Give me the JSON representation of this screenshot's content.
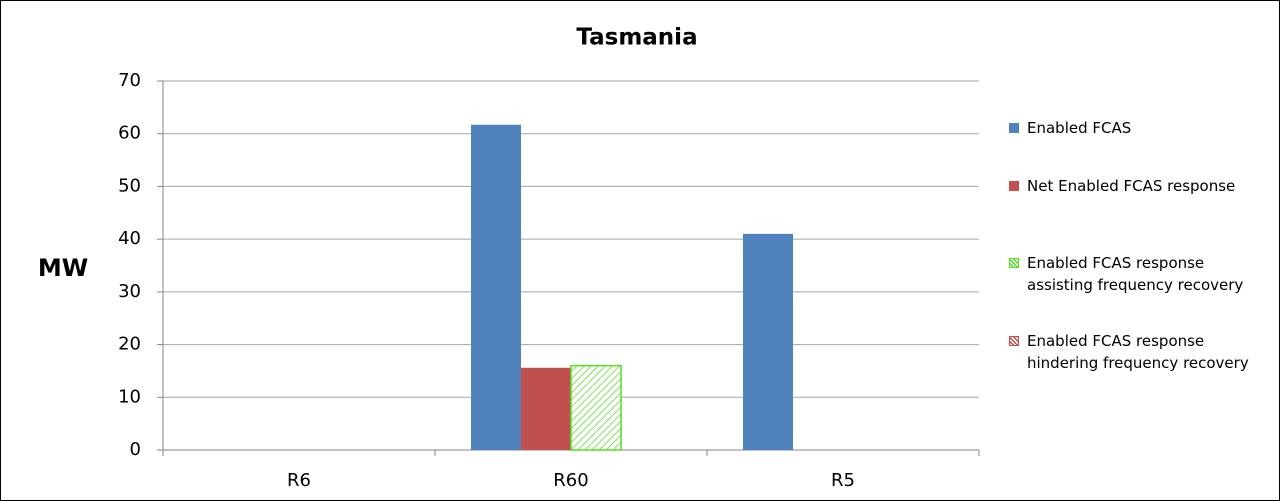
{
  "chart_data": {
    "type": "bar",
    "title": "Tasmania",
    "y_label": "MW",
    "categories": [
      "R6",
      "R60",
      "R5"
    ],
    "series": [
      {
        "name": "Enabled FCAS",
        "color": "#4f81bd",
        "values": [
          0,
          61.7,
          41
        ]
      },
      {
        "name": "Net Enabled FCAS response",
        "color": "#c0504d",
        "values": [
          0,
          15.6,
          0
        ]
      },
      {
        "name": "Enabled FCAS response assisting frequency recovery",
        "color": "#55dd22",
        "pattern": "hatch",
        "values": [
          0,
          16,
          0
        ]
      },
      {
        "name": "Enabled FCAS response hindering frequency recovery",
        "color": "#c0504d",
        "pattern": "hatch",
        "values": [
          0,
          0,
          0
        ]
      }
    ],
    "ylim": [
      0,
      70
    ],
    "yticks": [
      0,
      10,
      20,
      30,
      40,
      50,
      60,
      70
    ],
    "grid": true,
    "legend": "right"
  }
}
